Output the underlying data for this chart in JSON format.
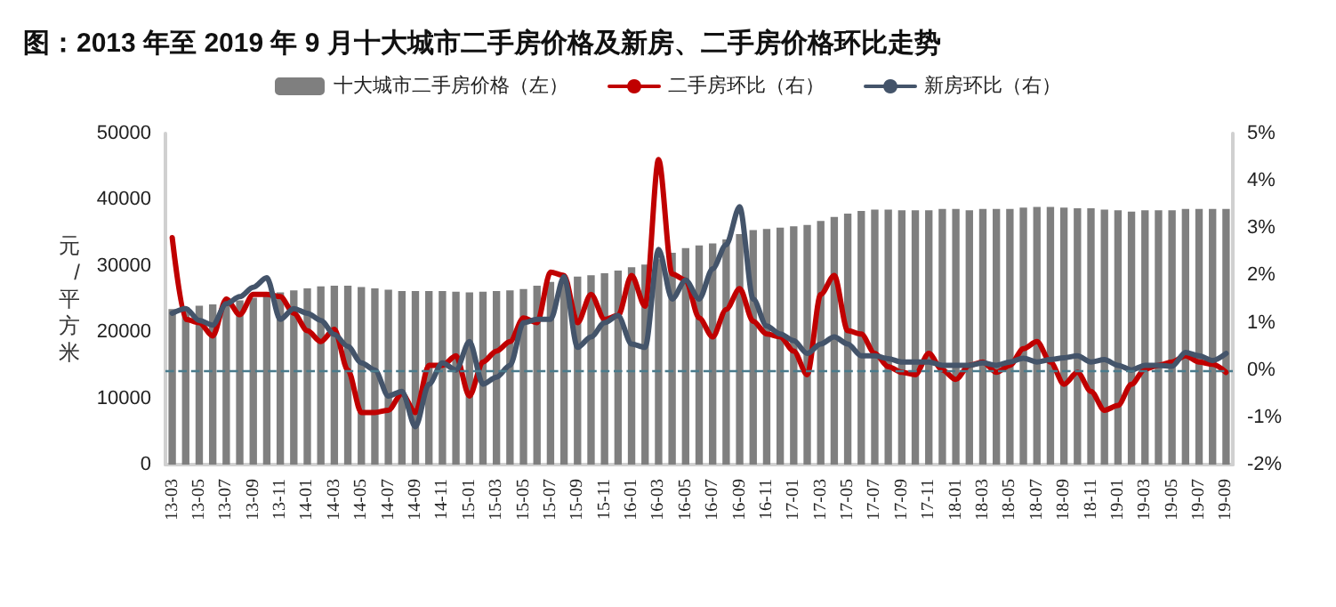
{
  "chart_data": {
    "type": "bar",
    "title": "图：2013 年至 2019 年 9 月十大城市二手房价格及新房、二手房价格环比走势",
    "ylabel": "元/平方米",
    "categories": [
      "13-03",
      null,
      "13-05",
      null,
      "13-07",
      null,
      "13-09",
      null,
      "13-11",
      null,
      "14-01",
      null,
      "14-03",
      null,
      "14-05",
      null,
      "14-07",
      null,
      "14-09",
      null,
      "14-11",
      null,
      "15-01",
      null,
      "15-03",
      null,
      "15-05",
      null,
      "15-07",
      null,
      "15-09",
      null,
      "15-11",
      null,
      "16-01",
      null,
      "16-03",
      null,
      "16-05",
      null,
      "16-07",
      null,
      "16-09",
      null,
      "16-11",
      null,
      "17-01",
      null,
      "17-03",
      null,
      "17-05",
      null,
      "17-07",
      null,
      "17-09",
      null,
      "17-11",
      null,
      "18-01",
      null,
      "18-03",
      null,
      "18-05",
      null,
      "18-07",
      null,
      "18-09",
      null,
      "18-11",
      null,
      "19-01",
      null,
      "19-03",
      null,
      "19-05",
      null,
      "19-07",
      null,
      "19-09"
    ],
    "series": [
      {
        "name": "十大城市二手房价格（左）",
        "color": "#7f7f7f",
        "values": [
          23500,
          23800,
          24000,
          24200,
          24500,
          24800,
          25200,
          25600,
          26000,
          26300,
          26600,
          26900,
          27000,
          27000,
          26800,
          26600,
          26400,
          26200,
          26200,
          26200,
          26200,
          26100,
          26000,
          26100,
          26200,
          26300,
          26500,
          27000,
          27600,
          28000,
          28400,
          28600,
          28900,
          29300,
          29800,
          30200,
          31000,
          32000,
          32700,
          33100,
          33400,
          34000,
          34800,
          35400,
          35600,
          35800,
          36000,
          36200,
          36800,
          37400,
          37900,
          38300,
          38500,
          38500,
          38400,
          38400,
          38400,
          38600,
          38600,
          38400,
          38600,
          38600,
          38600,
          38800,
          38900,
          38900,
          38800,
          38700,
          38700,
          38500,
          38400,
          38200,
          38400,
          38400,
          38400,
          38600,
          38600,
          38600,
          38600
        ]
      },
      {
        "name": "二手房环比（右）",
        "type": "line",
        "axis": "y2",
        "color": "#c00000",
        "values": [
          2.8,
          1.07,
          1.0,
          0.72,
          1.5,
          1.17,
          1.6,
          1.6,
          1.55,
          1.2,
          0.83,
          0.6,
          0.86,
          0,
          -0.9,
          -0.9,
          -0.85,
          -0.5,
          -0.9,
          0.1,
          0.1,
          0.3,
          -0.55,
          0.17,
          0.4,
          0.6,
          1.1,
          1.0,
          2.07,
          2.0,
          1.0,
          1.6,
          1.07,
          1.15,
          2.0,
          1.35,
          4.45,
          2.03,
          1.9,
          1.1,
          0.7,
          1.28,
          1.72,
          1.03,
          0.76,
          0.7,
          0.4,
          -0.1,
          1.6,
          2.0,
          0.83,
          0.76,
          0.35,
          0.07,
          -0.05,
          -0.1,
          0.35,
          0,
          -0.2,
          0.1,
          0.17,
          -0.05,
          0.1,
          0.45,
          0.6,
          0.17,
          -0.3,
          -0.05,
          -0.45,
          -0.85,
          -0.75,
          -0.3,
          0.02,
          0.1,
          0.17,
          0.3,
          0.17,
          0.12,
          -0.05
        ]
      },
      {
        "name": "新房环比（右）",
        "type": "line",
        "axis": "y2",
        "color": "#44546a",
        "values": [
          1.2,
          1.3,
          1.05,
          0.95,
          1.4,
          1.55,
          1.75,
          1.95,
          1.07,
          1.3,
          1.2,
          1.05,
          0.75,
          0.5,
          0.15,
          0,
          -0.55,
          -0.45,
          -1.2,
          -0.3,
          0.15,
          0,
          0.6,
          -0.3,
          -0.15,
          0.1,
          1.0,
          1.07,
          1.07,
          1.97,
          0.48,
          0.7,
          1.0,
          1.15,
          0.55,
          0.48,
          2.55,
          1.5,
          1.9,
          1.5,
          2.14,
          2.65,
          3.45,
          1.5,
          0.93,
          0.76,
          0.62,
          0.35,
          0.55,
          0.7,
          0.55,
          0.3,
          0.3,
          0.24,
          0.17,
          0.17,
          0.17,
          0.1,
          0.1,
          0.1,
          0.15,
          0.1,
          0.17,
          0.25,
          0.17,
          0.22,
          0.26,
          0.3,
          0.17,
          0.22,
          0.1,
          0,
          0.1,
          0.1,
          0.08,
          0.37,
          0.3,
          0.2,
          0.35
        ]
      }
    ],
    "ylim": [
      0,
      50000
    ],
    "yticks": [
      0,
      10000,
      20000,
      30000,
      40000,
      50000
    ],
    "y2lim": [
      -2,
      5
    ],
    "y2ticks": [
      {
        "value": -2,
        "label": "-2%"
      },
      {
        "value": -1,
        "label": "-1%"
      },
      {
        "value": 0,
        "label": "0%"
      },
      {
        "value": 1,
        "label": "1%"
      },
      {
        "value": 2,
        "label": "2%"
      },
      {
        "value": 3,
        "label": "3%"
      },
      {
        "value": 4,
        "label": "4%"
      },
      {
        "value": 5,
        "label": "5%"
      }
    ],
    "ref_lines": [
      {
        "axis": "y2",
        "value": 0,
        "color": "#4a7b8c",
        "line_style": "dashed"
      }
    ],
    "legend": "top",
    "grid": false,
    "marker": "none",
    "line_style": "solid"
  }
}
